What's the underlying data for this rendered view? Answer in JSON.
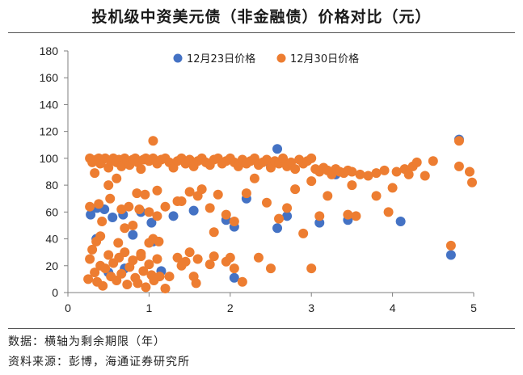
{
  "title": "投机级中资美元债（非金融债）价格对比（元）",
  "notes": [
    "数据：横轴为剩余期限（年）",
    "资料来源：彭博，海通证券研究所"
  ],
  "colors": {
    "series1": "#4472C4",
    "series2": "#ED7D31"
  },
  "chart_data": {
    "type": "scatter",
    "title": "投机级中资美元债（非金融债）价格对比（元）",
    "xlim": [
      0,
      5
    ],
    "ylim": [
      0,
      180
    ],
    "x_ticks": [
      "0",
      "1",
      "2",
      "3",
      "4",
      "5"
    ],
    "y_ticks": [
      "0",
      "20",
      "40",
      "60",
      "80",
      "100",
      "120",
      "140",
      "160",
      "180"
    ],
    "grid": false,
    "legend_position": "top",
    "series": [
      {
        "name": "12月23日价格",
        "color": "#4472C4",
        "points": [
          [
            0.28,
            58
          ],
          [
            0.36,
            63
          ],
          [
            0.45,
            62
          ],
          [
            0.55,
            56
          ],
          [
            0.68,
            58
          ],
          [
            0.8,
            43
          ],
          [
            0.9,
            60
          ],
          [
            1.03,
            52
          ],
          [
            1.15,
            16
          ],
          [
            1.3,
            57
          ],
          [
            1.55,
            61
          ],
          [
            1.95,
            54
          ],
          [
            2.05,
            49
          ],
          [
            2.05,
            11
          ],
          [
            2.2,
            70
          ],
          [
            2.58,
            48
          ],
          [
            2.58,
            107
          ],
          [
            2.7,
            57
          ],
          [
            3.1,
            52
          ],
          [
            3.45,
            54
          ],
          [
            4.1,
            53
          ],
          [
            4.72,
            28
          ],
          [
            4.82,
            114
          ],
          [
            0.35,
            40
          ],
          [
            0.7,
            18
          ],
          [
            1.05,
            38
          ],
          [
            0.5,
            15
          ],
          [
            2.5,
            95
          ],
          [
            3.3,
            88
          ]
        ]
      },
      {
        "name": "12月30日价格",
        "color": "#ED7D31",
        "points": [
          [
            0.27,
            100
          ],
          [
            0.3,
            97
          ],
          [
            0.33,
            89
          ],
          [
            0.35,
            99
          ],
          [
            0.38,
            100
          ],
          [
            0.4,
            96
          ],
          [
            0.43,
            99
          ],
          [
            0.46,
            100
          ],
          [
            0.5,
            93
          ],
          [
            0.53,
            98
          ],
          [
            0.56,
            100
          ],
          [
            0.6,
            97
          ],
          [
            0.63,
            99
          ],
          [
            0.66,
            94
          ],
          [
            0.7,
            100
          ],
          [
            0.73,
            98
          ],
          [
            0.76,
            95
          ],
          [
            0.8,
            99
          ],
          [
            0.83,
            100
          ],
          [
            0.86,
            97
          ],
          [
            0.9,
            92
          ],
          [
            0.93,
            99
          ],
          [
            0.96,
            100
          ],
          [
            1.0,
            98
          ],
          [
            1.05,
            100
          ],
          [
            1.1,
            96
          ],
          [
            1.15,
            99
          ],
          [
            1.2,
            100
          ],
          [
            1.25,
            97
          ],
          [
            1.3,
            93
          ],
          [
            1.35,
            98
          ],
          [
            1.4,
            100
          ],
          [
            1.45,
            96
          ],
          [
            1.5,
            99
          ],
          [
            1.55,
            94
          ],
          [
            1.6,
            98
          ],
          [
            1.65,
            100
          ],
          [
            1.7,
            97
          ],
          [
            1.75,
            95
          ],
          [
            1.8,
            99
          ],
          [
            1.85,
            100
          ],
          [
            1.9,
            96
          ],
          [
            1.95,
            98
          ],
          [
            2.0,
            100
          ],
          [
            2.05,
            97
          ],
          [
            2.1,
            94
          ],
          [
            2.15,
            99
          ],
          [
            2.2,
            96
          ],
          [
            2.25,
            98
          ],
          [
            2.3,
            100
          ],
          [
            2.35,
            95
          ],
          [
            2.4,
            97
          ],
          [
            2.45,
            99
          ],
          [
            2.5,
            93
          ],
          [
            2.55,
            98
          ],
          [
            2.6,
            96
          ],
          [
            2.65,
            100
          ],
          [
            2.7,
            94
          ],
          [
            2.75,
            97
          ],
          [
            2.8,
            92
          ],
          [
            2.85,
            99
          ],
          [
            2.9,
            96
          ],
          [
            2.95,
            98
          ],
          [
            3.0,
            100
          ],
          [
            3.05,
            92
          ],
          [
            3.1,
            90
          ],
          [
            3.15,
            93
          ],
          [
            3.2,
            91
          ],
          [
            3.25,
            88
          ],
          [
            3.3,
            92
          ],
          [
            3.35,
            90
          ],
          [
            3.4,
            89
          ],
          [
            3.45,
            91
          ],
          [
            3.5,
            90
          ],
          [
            3.6,
            88
          ],
          [
            3.7,
            87
          ],
          [
            3.8,
            89
          ],
          [
            3.9,
            91
          ],
          [
            4.05,
            90
          ],
          [
            4.15,
            92
          ],
          [
            4.25,
            94
          ],
          [
            4.3,
            97
          ],
          [
            4.5,
            98
          ],
          [
            4.82,
            94
          ],
          [
            4.95,
            90
          ],
          [
            0.5,
            80
          ],
          [
            0.6,
            85
          ],
          [
            0.85,
            74
          ],
          [
            0.95,
            73
          ],
          [
            1.1,
            76
          ],
          [
            1.35,
            68
          ],
          [
            1.5,
            75
          ],
          [
            1.65,
            77
          ],
          [
            1.85,
            73
          ],
          [
            2.3,
            85
          ],
          [
            2.8,
            77
          ],
          [
            3.0,
            83
          ],
          [
            3.2,
            72
          ],
          [
            3.5,
            80
          ],
          [
            3.8,
            72
          ],
          [
            4.0,
            78
          ],
          [
            4.2,
            88
          ],
          [
            4.4,
            87
          ],
          [
            4.98,
            82
          ],
          [
            0.27,
            64
          ],
          [
            0.38,
            66
          ],
          [
            0.42,
            53
          ],
          [
            0.52,
            70
          ],
          [
            0.66,
            62
          ],
          [
            0.75,
            64
          ],
          [
            0.88,
            62
          ],
          [
            1.0,
            60
          ],
          [
            1.1,
            57
          ],
          [
            1.2,
            64
          ],
          [
            1.4,
            68
          ],
          [
            1.6,
            72
          ],
          [
            1.75,
            63
          ],
          [
            1.95,
            58
          ],
          [
            2.05,
            53
          ],
          [
            2.2,
            74
          ],
          [
            2.45,
            67
          ],
          [
            2.7,
            63
          ],
          [
            2.6,
            55
          ],
          [
            3.1,
            57
          ],
          [
            3.45,
            58
          ],
          [
            3.55,
            57
          ],
          [
            3.95,
            60
          ],
          [
            0.25,
            10
          ],
          [
            0.27,
            25
          ],
          [
            0.3,
            32
          ],
          [
            0.33,
            15
          ],
          [
            0.36,
            8
          ],
          [
            0.4,
            20
          ],
          [
            0.43,
            5
          ],
          [
            0.46,
            18
          ],
          [
            0.5,
            28
          ],
          [
            0.53,
            12
          ],
          [
            0.56,
            22
          ],
          [
            0.6,
            9
          ],
          [
            0.63,
            26
          ],
          [
            0.66,
            14
          ],
          [
            0.7,
            30
          ],
          [
            0.73,
            6
          ],
          [
            0.76,
            19
          ],
          [
            0.8,
            24
          ],
          [
            0.83,
            11
          ],
          [
            0.86,
            7
          ],
          [
            0.9,
            27
          ],
          [
            0.93,
            16
          ],
          [
            0.96,
            4
          ],
          [
            1.0,
            21
          ],
          [
            1.03,
            13
          ],
          [
            1.06,
            9
          ],
          [
            1.1,
            25
          ],
          [
            1.13,
            12
          ],
          [
            1.2,
            3
          ],
          [
            1.25,
            12
          ],
          [
            1.35,
            26
          ],
          [
            1.4,
            20
          ],
          [
            1.45,
            23
          ],
          [
            1.5,
            30
          ],
          [
            1.55,
            12
          ],
          [
            1.58,
            7
          ],
          [
            1.6,
            25
          ],
          [
            1.75,
            21
          ],
          [
            1.8,
            27
          ],
          [
            1.95,
            23
          ],
          [
            2.0,
            26
          ],
          [
            2.05,
            18
          ],
          [
            2.15,
            8
          ],
          [
            2.35,
            26
          ],
          [
            2.5,
            18
          ],
          [
            2.9,
            44
          ],
          [
            3.0,
            18
          ],
          [
            0.4,
            42
          ],
          [
            0.62,
            37
          ],
          [
            0.7,
            48
          ],
          [
            0.8,
            50
          ],
          [
            0.9,
            29
          ],
          [
            1.0,
            37
          ],
          [
            1.05,
            40
          ],
          [
            1.12,
            38
          ],
          [
            1.8,
            45
          ],
          [
            0.35,
            38
          ],
          [
            1.05,
            113
          ],
          [
            4.72,
            35
          ],
          [
            4.82,
            113
          ]
        ]
      }
    ]
  }
}
